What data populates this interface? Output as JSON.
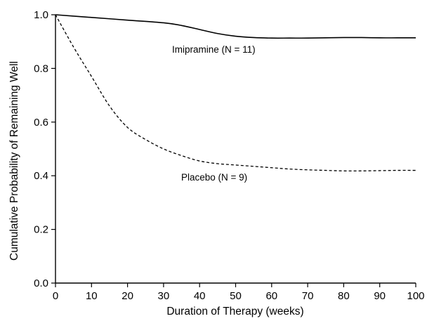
{
  "chart_data": {
    "type": "line",
    "title": "",
    "xlabel": "Duration of Therapy (weeks)",
    "ylabel": "Cumulative Probability of Remaining Well",
    "xlim": [
      0,
      100
    ],
    "ylim": [
      0,
      1.0
    ],
    "x_ticks": [
      "0",
      "10",
      "20",
      "30",
      "40",
      "50",
      "60",
      "70",
      "80",
      "90",
      "100"
    ],
    "y_ticks": [
      "0.0",
      "0.2",
      "0.4",
      "0.6",
      "0.8",
      "1.0"
    ],
    "grid": false,
    "legend": "none",
    "series": [
      {
        "name": "Imipramine (N = 11)",
        "line_style": "solid",
        "color": "#000000",
        "x": [
          0,
          10,
          20,
          30,
          35,
          40,
          45,
          50,
          55,
          60,
          65,
          70,
          75,
          80,
          85,
          90,
          95,
          100
        ],
        "y": [
          1.0,
          0.99,
          0.98,
          0.97,
          0.96,
          0.945,
          0.93,
          0.92,
          0.915,
          0.913,
          0.913,
          0.913,
          0.914,
          0.915,
          0.915,
          0.914,
          0.914,
          0.914
        ]
      },
      {
        "name": "Placebo (N = 9)",
        "line_style": "dashed",
        "color": "#000000",
        "x": [
          0,
          5,
          10,
          15,
          20,
          25,
          30,
          35,
          40,
          45,
          50,
          55,
          60,
          65,
          70,
          75,
          80,
          85,
          90,
          95,
          100
        ],
        "y": [
          1.0,
          0.88,
          0.77,
          0.66,
          0.58,
          0.535,
          0.5,
          0.475,
          0.455,
          0.445,
          0.44,
          0.435,
          0.43,
          0.425,
          0.422,
          0.42,
          0.418,
          0.418,
          0.419,
          0.42,
          0.42
        ]
      }
    ]
  }
}
